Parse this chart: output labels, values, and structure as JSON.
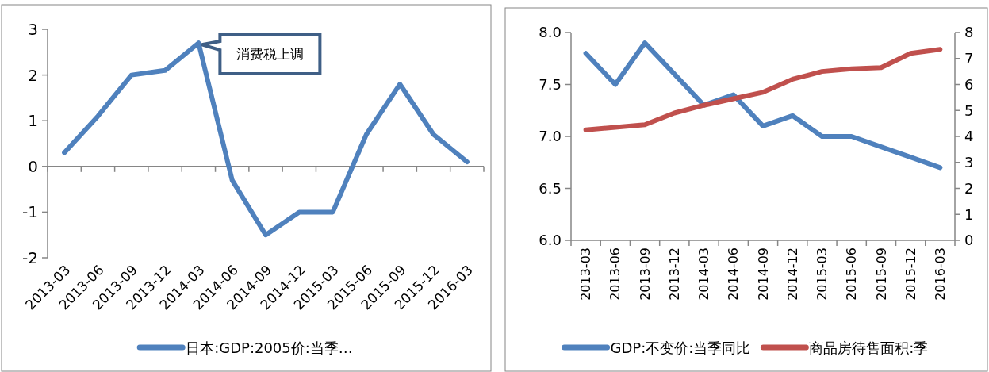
{
  "chart_data": [
    {
      "type": "line",
      "categories": [
        "2013-03",
        "2013-06",
        "2013-09",
        "2013-12",
        "2014-03",
        "2014-06",
        "2014-09",
        "2014-12",
        "2015-03",
        "2015-06",
        "2015-09",
        "2015-12",
        "2016-03"
      ],
      "series": [
        {
          "name": "日本:GDP:2005价:当季…",
          "color": "#4f81bd",
          "values": [
            0.3,
            1.1,
            2.0,
            2.1,
            2.7,
            -0.3,
            -1.5,
            -1.0,
            -1.0,
            0.7,
            1.8,
            0.7,
            0.1
          ]
        }
      ],
      "ylim": [
        -2,
        3
      ],
      "yticks": [
        -2,
        -1,
        0,
        1,
        2,
        3
      ],
      "annotations": [
        {
          "text": "消费税上调",
          "x": "2014-03",
          "y": 2.7
        }
      ],
      "legend": "bottom"
    },
    {
      "type": "line",
      "categories": [
        "2013-03",
        "2013-06",
        "2013-09",
        "2013-12",
        "2014-03",
        "2014-06",
        "2014-09",
        "2014-12",
        "2015-03",
        "2015-06",
        "2015-09",
        "2015-12",
        "2016-03"
      ],
      "series": [
        {
          "name": "GDP:不变价:当季同比",
          "color": "#4f81bd",
          "values": [
            7.8,
            7.5,
            7.9,
            7.6,
            7.3,
            7.4,
            7.1,
            7.2,
            7.0,
            7.0,
            6.9,
            6.8,
            6.7
          ]
        },
        {
          "name": "商品房待售面积:季",
          "color": "#c0504d",
          "axis": "y2",
          "values": [
            4.25,
            4.35,
            4.45,
            4.9,
            5.2,
            5.45,
            5.7,
            6.2,
            6.5,
            6.6,
            6.65,
            7.2,
            7.35
          ]
        }
      ],
      "ylim": [
        6,
        8
      ],
      "yticks": [
        {
          "value": 6,
          "label": "6.0"
        },
        {
          "value": 6.5,
          "label": "6.5"
        },
        {
          "value": 7,
          "label": "7.0"
        },
        {
          "value": 7.5,
          "label": "7.5"
        },
        {
          "value": 8,
          "label": "8.0"
        }
      ],
      "y2lim": [
        0,
        8
      ],
      "y2ticks": [
        0,
        1,
        2,
        3,
        4,
        5,
        6,
        7,
        8
      ],
      "legend": "bottom",
      "grid": false
    }
  ]
}
